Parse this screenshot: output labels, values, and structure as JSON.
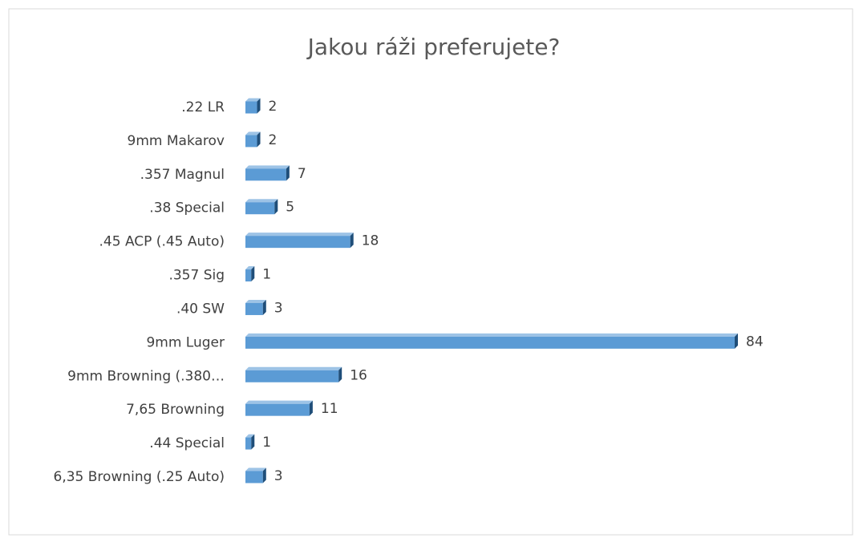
{
  "chart_data": {
    "type": "bar",
    "orientation": "horizontal",
    "title": "Jakou ráži preferujete?",
    "categories": [
      ".22 LR",
      "9mm Makarov",
      ".357 Magnul",
      ".38 Special",
      ".45 ACP (.45 Auto)",
      ".357 Sig",
      ".40 SW",
      "9mm Luger",
      "9mm Browning (.380…",
      "7,65 Browning",
      ".44 Special",
      "6,35 Browning (.25 Auto)"
    ],
    "values": [
      2,
      2,
      7,
      5,
      18,
      1,
      3,
      84,
      16,
      11,
      1,
      3
    ],
    "color": "#5b9bd5"
  }
}
